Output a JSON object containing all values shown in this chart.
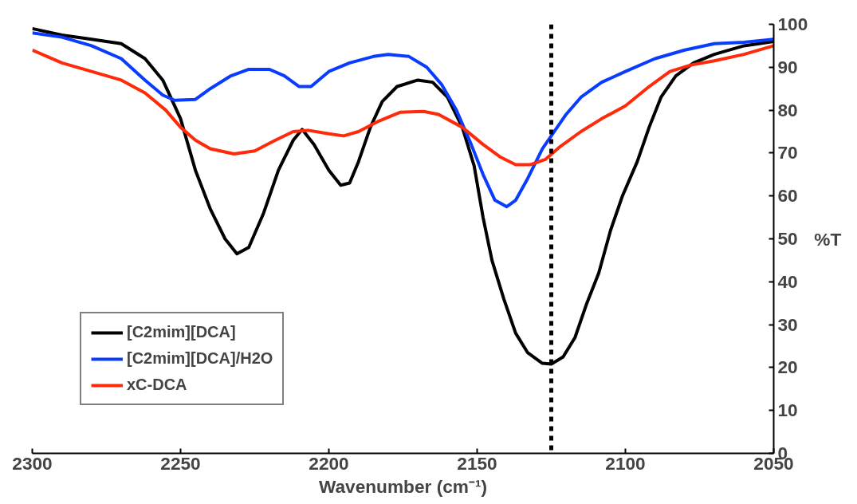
{
  "chart_data": {
    "type": "line",
    "xlabel": "Wavenumber (cm⁻¹)",
    "ylabel": "%T",
    "xlim": [
      2300,
      2050
    ],
    "xticks": [
      2300,
      2250,
      2200,
      2150,
      2100,
      2050
    ],
    "ylim": [
      0,
      100
    ],
    "yticks": [
      0,
      10,
      20,
      30,
      40,
      50,
      60,
      70,
      80,
      90,
      100
    ],
    "grid": false,
    "legend": "bottom left",
    "marker": "none",
    "line_style": "solid",
    "ref_lines": [
      {
        "axis": "x",
        "value": 2125,
        "label": null,
        "color": "#000000",
        "line_style": "dashed"
      }
    ],
    "series": [
      {
        "name": "[C2mim][DCA]",
        "color": "#000000",
        "x": [
          2300,
          2290,
          2280,
          2270,
          2262,
          2256,
          2250,
          2245,
          2240,
          2235,
          2231,
          2227,
          2222,
          2217,
          2212,
          2209,
          2205,
          2200,
          2196,
          2193,
          2190,
          2186,
          2182,
          2177,
          2170,
          2165,
          2160,
          2155,
          2151,
          2148,
          2145,
          2141,
          2137,
          2133,
          2128,
          2125,
          2121,
          2117,
          2113,
          2109,
          2105,
          2101,
          2096,
          2092,
          2088,
          2083,
          2077,
          2070,
          2060,
          2050
        ],
        "values": [
          99,
          97.5,
          96.5,
          95.5,
          92,
          87,
          78,
          66,
          57,
          50,
          46.5,
          48,
          56,
          66,
          73,
          75.5,
          72,
          66,
          62.5,
          63,
          68,
          76,
          82,
          85.5,
          87,
          86.5,
          83,
          76,
          67,
          55,
          45,
          36,
          28,
          23.5,
          21,
          20.8,
          22.5,
          27,
          35,
          42,
          52,
          60,
          68,
          76,
          83,
          88,
          91,
          93,
          95,
          96
        ]
      },
      {
        "name": "[C2mim][DCA]/H2O",
        "color": "#0a3cff",
        "x": [
          2300,
          2290,
          2280,
          2270,
          2262,
          2256,
          2252,
          2245,
          2240,
          2233,
          2227,
          2220,
          2215,
          2210,
          2206,
          2200,
          2193,
          2185,
          2180,
          2173,
          2167,
          2162,
          2157,
          2152,
          2148,
          2144,
          2140,
          2137,
          2133,
          2128,
          2125,
          2120,
          2115,
          2108,
          2100,
          2090,
          2080,
          2070,
          2060,
          2050
        ],
        "values": [
          98,
          97,
          95,
          92,
          87,
          83.5,
          82.3,
          82.5,
          85,
          88,
          89.5,
          89.5,
          88,
          85.5,
          85.5,
          89,
          91,
          92.5,
          93,
          92.5,
          90,
          86,
          80,
          72,
          65,
          59,
          57.5,
          59,
          64,
          71,
          74,
          79,
          83,
          86.5,
          89,
          92,
          94,
          95.5,
          95.8,
          96.5
        ]
      },
      {
        "name": "xC-DCA",
        "color": "#ff2a0a",
        "x": [
          2300,
          2290,
          2280,
          2270,
          2262,
          2255,
          2250,
          2245,
          2240,
          2232,
          2225,
          2218,
          2212,
          2207,
          2200,
          2195,
          2190,
          2183,
          2176,
          2168,
          2163,
          2155,
          2148,
          2142,
          2137,
          2132,
          2127,
          2122,
          2115,
          2108,
          2100,
          2092,
          2085,
          2078,
          2070,
          2060,
          2050
        ],
        "values": [
          94,
          91,
          89,
          87,
          84,
          80,
          76,
          73,
          71,
          69.8,
          70.5,
          73,
          75,
          75.3,
          74.5,
          74,
          75,
          77.5,
          79.5,
          79.7,
          79,
          76,
          72,
          69,
          67.3,
          67.3,
          68.5,
          71.5,
          75,
          78,
          81,
          85.5,
          89,
          90.5,
          91.5,
          93,
          95
        ]
      }
    ]
  }
}
